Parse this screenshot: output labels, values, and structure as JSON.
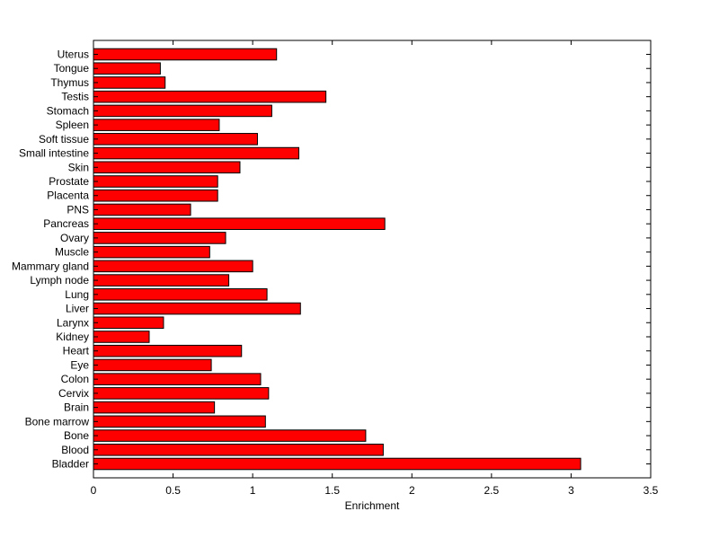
{
  "chart_data": {
    "type": "bar",
    "orientation": "horizontal",
    "title": "",
    "xlabel": "Enrichment",
    "ylabel": "",
    "xlim": [
      0,
      3.5
    ],
    "xticks": [
      0,
      0.5,
      1,
      1.5,
      2,
      2.5,
      3,
      3.5
    ],
    "xtick_labels": [
      "0",
      "0.5",
      "1",
      "1.5",
      "2",
      "2.5",
      "3",
      "3.5"
    ],
    "grid": false,
    "bar_color": "#ff0000",
    "bar_edge_color": "#000000",
    "categories": [
      "Bladder",
      "Blood",
      "Bone",
      "Bone marrow",
      "Brain",
      "Cervix",
      "Colon",
      "Eye",
      "Heart",
      "Kidney",
      "Larynx",
      "Liver",
      "Lung",
      "Lymph node",
      "Mammary gland",
      "Muscle",
      "Ovary",
      "Pancreas",
      "PNS",
      "Placenta",
      "Prostate",
      "Skin",
      "Small intestine",
      "Soft tissue",
      "Spleen",
      "Stomach",
      "Testis",
      "Thymus",
      "Tongue",
      "Uterus"
    ],
    "values": [
      3.06,
      1.82,
      1.71,
      1.08,
      0.76,
      1.1,
      1.05,
      0.74,
      0.93,
      0.35,
      0.44,
      1.3,
      1.09,
      0.85,
      1.0,
      0.73,
      0.83,
      1.83,
      0.61,
      0.78,
      0.78,
      0.92,
      1.29,
      1.03,
      0.79,
      1.12,
      1.46,
      0.45,
      0.42,
      1.15
    ]
  }
}
